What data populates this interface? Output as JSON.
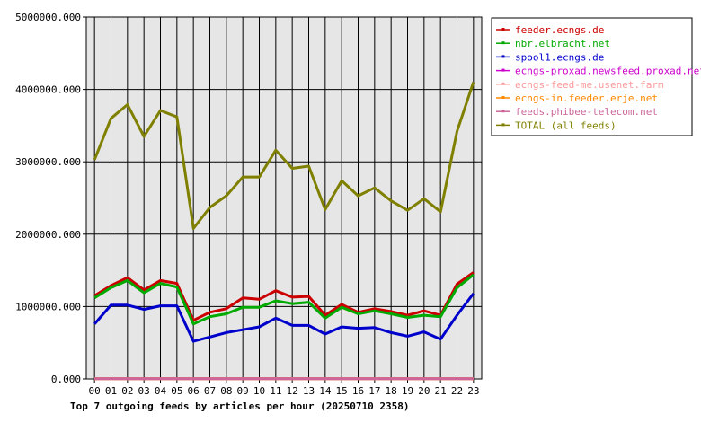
{
  "chart_data": {
    "type": "line",
    "title": "Top 7 outgoing feeds by articles per hour (20250710 2358)",
    "xlabel": "",
    "ylabel": "",
    "categories": [
      "00",
      "01",
      "02",
      "03",
      "04",
      "05",
      "06",
      "07",
      "08",
      "09",
      "10",
      "11",
      "12",
      "13",
      "14",
      "15",
      "16",
      "17",
      "18",
      "19",
      "20",
      "21",
      "22",
      "23"
    ],
    "ylim": [
      0,
      5000000
    ],
    "y_ticks": [
      "0.000",
      "1000000.000",
      "2000000.000",
      "3000000.000",
      "4000000.000",
      "5000000.000"
    ],
    "grid": true,
    "legend_position": "right",
    "series": [
      {
        "name": "feeder.ecngs.de",
        "color": "#cc0000",
        "values": [
          1150000,
          1290000,
          1400000,
          1230000,
          1360000,
          1320000,
          810000,
          920000,
          970000,
          1120000,
          1100000,
          1220000,
          1130000,
          1140000,
          880000,
          1030000,
          920000,
          970000,
          930000,
          880000,
          940000,
          880000,
          1310000,
          1470000
        ]
      },
      {
        "name": "nbr.elbracht.net",
        "color": "#00aa00",
        "values": [
          1120000,
          1260000,
          1360000,
          1190000,
          1320000,
          1270000,
          760000,
          860000,
          900000,
          990000,
          990000,
          1080000,
          1040000,
          1060000,
          840000,
          990000,
          900000,
          940000,
          900000,
          850000,
          880000,
          860000,
          1260000,
          1440000
        ]
      },
      {
        "name": "spool1.ecngs.de",
        "color": "#0000cc",
        "values": [
          760000,
          1020000,
          1020000,
          960000,
          1010000,
          1010000,
          520000,
          580000,
          640000,
          680000,
          720000,
          840000,
          740000,
          740000,
          620000,
          720000,
          700000,
          710000,
          640000,
          590000,
          650000,
          550000,
          880000,
          1180000
        ]
      },
      {
        "name": "ecngs-proxad.newsfeed.proxad.net",
        "color": "#cc00cc",
        "values": [
          5000,
          5000,
          5000,
          5000,
          5000,
          5000,
          5000,
          5000,
          5000,
          5000,
          5000,
          5000,
          5000,
          5000,
          5000,
          5000,
          5000,
          5000,
          5000,
          5000,
          5000,
          5000,
          5000,
          5000
        ]
      },
      {
        "name": "ecngs-feed-me.usenet.farm",
        "color": "#ff9999",
        "values": [
          3000,
          3000,
          3000,
          3000,
          3000,
          3000,
          3000,
          3000,
          3000,
          3000,
          3000,
          3000,
          3000,
          3000,
          3000,
          3000,
          3000,
          3000,
          3000,
          3000,
          3000,
          3000,
          3000,
          3000
        ]
      },
      {
        "name": "ecngs-in.feeder.erje.net",
        "color": "#ff8800",
        "values": [
          2000,
          2000,
          2000,
          2000,
          2000,
          2000,
          2000,
          2000,
          2000,
          2000,
          2000,
          2000,
          2000,
          2000,
          2000,
          2000,
          2000,
          2000,
          2000,
          2000,
          2000,
          2000,
          2000,
          2000
        ]
      },
      {
        "name": "feeds.phibee-telecom.net",
        "color": "#cc6699",
        "values": [
          4000,
          4000,
          4000,
          4000,
          4000,
          4000,
          4000,
          4000,
          4000,
          4000,
          4000,
          4000,
          4000,
          4000,
          4000,
          4000,
          4000,
          4000,
          4000,
          4000,
          4000,
          4000,
          4000,
          4000
        ]
      },
      {
        "name": "TOTAL (all feeds)",
        "color": "#808000",
        "values": [
          3030000,
          3600000,
          3790000,
          3350000,
          3710000,
          3620000,
          2080000,
          2370000,
          2530000,
          2790000,
          2790000,
          3160000,
          2910000,
          2940000,
          2340000,
          2740000,
          2530000,
          2640000,
          2460000,
          2330000,
          2490000,
          2310000,
          3420000,
          4100000
        ]
      }
    ]
  }
}
